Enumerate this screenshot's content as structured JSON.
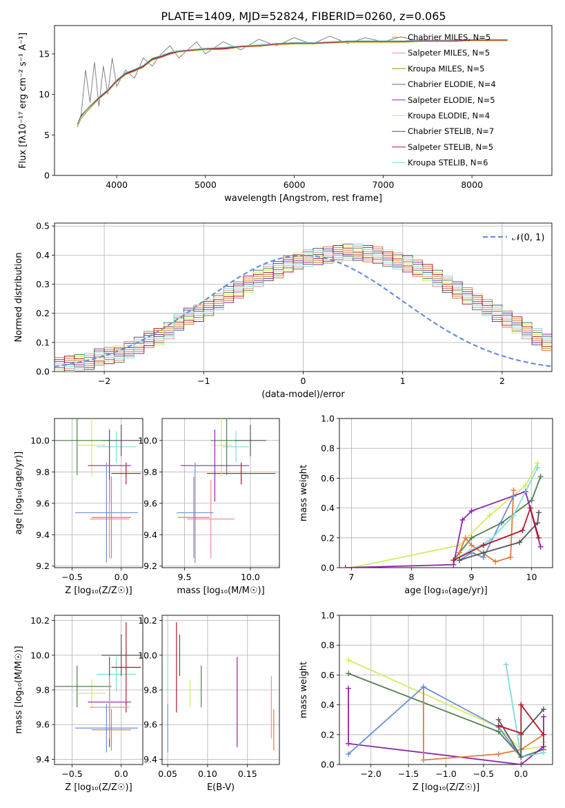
{
  "figure_title": "PLATE=1409, MJD=52824, FIBERID=0260, z=0.065",
  "colors": {
    "chabrier_miles": "#e07b3c",
    "salpeter_miles": "#f08a9a",
    "kroupa_miles": "#b08a20",
    "chabrier_elodie": "#4f7f4f",
    "salpeter_elodie": "#8e24aa",
    "kroupa_elodie": "#d6ea60",
    "chabrier_stelib": "#555555",
    "salpeter_stelib": "#b2182b",
    "kroupa_stelib": "#7fdada",
    "normal": "#6a8fd8",
    "data": "#808080"
  },
  "chart_data": [
    {
      "type": "line",
      "title": "PLATE=1409, MJD=52824, FIBERID=0260, z=0.065",
      "xlabel": "wavelength [Angstrom, rest frame]",
      "ylabel": "Flux [fλ10⁻¹⁷ erg cm⁻² s⁻¹ A⁻¹]",
      "xlim": [
        3300,
        8900
      ],
      "ylim": [
        0,
        18.5
      ],
      "xticks": [
        4000,
        5000,
        6000,
        7000,
        8000
      ],
      "yticks": [
        0,
        5,
        10,
        15
      ],
      "x": [
        3560,
        3600,
        3700,
        3800,
        3900,
        4000,
        4100,
        4200,
        4300,
        4400,
        4500,
        4600,
        4700,
        4800,
        5000,
        5200,
        5400,
        5600,
        5800,
        6000,
        6200,
        6400,
        6600,
        6800,
        7000,
        7200,
        7400,
        7600,
        7800,
        8000,
        8200,
        8400
      ],
      "series": [
        {
          "name": "Chabrier MILES, N_SSP=5",
          "key": "chabrier_miles",
          "values": [
            6.2,
            7.2,
            8.5,
            9.5,
            10.4,
            11.6,
            12.5,
            12.9,
            13.4,
            14.3,
            14.6,
            15.0,
            15.3,
            15.4,
            15.6,
            15.6,
            15.9,
            16.0,
            16.2,
            16.3,
            16.3,
            16.4,
            16.5,
            16.5,
            16.5,
            16.5,
            16.6,
            16.6,
            16.6,
            16.7,
            16.7,
            16.7
          ]
        },
        {
          "name": "Salpeter MILES, N_SSP=5",
          "key": "salpeter_miles",
          "values": [
            6.1,
            7.1,
            8.4,
            9.5,
            10.5,
            11.6,
            12.4,
            12.9,
            13.5,
            14.2,
            14.6,
            15.0,
            15.3,
            15.4,
            15.6,
            15.7,
            15.9,
            16.0,
            16.2,
            16.3,
            16.3,
            16.4,
            16.5,
            16.5,
            16.5,
            16.5,
            16.6,
            16.6,
            16.6,
            16.7,
            16.7,
            16.7
          ]
        },
        {
          "name": "Kroupa MILES, N_SSP=5",
          "key": "kroupa_miles",
          "values": [
            6.0,
            7.0,
            8.3,
            9.4,
            10.3,
            11.5,
            12.4,
            12.8,
            13.4,
            14.2,
            14.5,
            14.9,
            15.2,
            15.3,
            15.5,
            15.6,
            15.8,
            15.9,
            16.1,
            16.2,
            16.2,
            16.3,
            16.4,
            16.4,
            16.4,
            16.4,
            16.5,
            16.5,
            16.5,
            16.6,
            16.6,
            16.6
          ]
        },
        {
          "name": "Chabrier ELODIE, N_SSP=4",
          "key": "chabrier_elodie",
          "values": [
            6.3,
            7.3,
            8.6,
            9.6,
            10.5,
            11.7,
            12.6,
            13.0,
            13.5,
            14.4,
            14.7,
            15.1,
            15.4,
            15.5,
            15.7,
            15.7,
            16.0,
            16.1,
            16.3,
            16.4,
            16.4,
            16.5,
            16.6,
            16.6,
            16.6,
            16.6,
            16.7,
            16.7,
            16.7,
            16.8,
            16.8,
            16.8
          ]
        },
        {
          "name": "Salpeter ELODIE, N_SSP=5",
          "key": "salpeter_elodie",
          "values": [
            6.2,
            7.2,
            8.5,
            9.5,
            10.4,
            11.6,
            12.5,
            12.9,
            13.4,
            14.3,
            14.6,
            15.0,
            15.3,
            15.4,
            15.6,
            15.6,
            15.9,
            16.0,
            16.2,
            16.3,
            16.3,
            16.4,
            16.5,
            16.5,
            16.5,
            16.5,
            16.6,
            16.6,
            16.6,
            16.7,
            16.7,
            16.7
          ]
        },
        {
          "name": "Kroupa ELODIE, N_SSP=4",
          "key": "kroupa_elodie",
          "values": [
            6.1,
            7.1,
            8.4,
            9.4,
            10.3,
            11.5,
            12.4,
            12.8,
            13.3,
            14.2,
            14.5,
            14.9,
            15.2,
            15.3,
            15.5,
            15.5,
            15.8,
            15.9,
            16.1,
            16.2,
            16.2,
            16.3,
            16.4,
            16.4,
            16.4,
            16.4,
            16.5,
            16.5,
            16.5,
            16.6,
            16.6,
            16.6
          ]
        },
        {
          "name": "Chabrier STELIB, N_SSP=7",
          "key": "chabrier_stelib",
          "values": [
            6.4,
            7.4,
            8.6,
            9.6,
            10.6,
            11.8,
            12.6,
            13.1,
            13.6,
            14.4,
            14.8,
            15.2,
            15.4,
            15.5,
            15.7,
            15.8,
            16.0,
            16.1,
            16.3,
            16.4,
            16.4,
            16.5,
            16.6,
            16.6,
            16.6,
            16.6,
            16.7,
            16.7,
            16.7,
            16.8,
            16.8,
            16.8
          ]
        },
        {
          "name": "Salpeter STELIB, N_SSP=5",
          "key": "salpeter_stelib",
          "values": [
            6.3,
            7.3,
            8.5,
            9.5,
            10.5,
            11.7,
            12.5,
            13.0,
            13.5,
            14.3,
            14.7,
            15.1,
            15.3,
            15.4,
            15.6,
            15.7,
            15.9,
            16.0,
            16.2,
            16.3,
            16.3,
            16.4,
            16.5,
            16.5,
            16.5,
            16.5,
            16.6,
            16.6,
            16.6,
            16.7,
            16.7,
            16.7
          ]
        },
        {
          "name": "Kroupa STELIB, N_SSP=6",
          "key": "kroupa_stelib",
          "values": [
            6.2,
            7.2,
            8.6,
            9.7,
            10.6,
            11.8,
            12.7,
            13.1,
            13.6,
            14.5,
            14.8,
            15.2,
            15.4,
            15.5,
            15.7,
            15.8,
            16.0,
            16.1,
            16.3,
            16.4,
            16.4,
            16.5,
            16.6,
            16.6,
            16.6,
            16.6,
            16.7,
            16.7,
            16.7,
            16.8,
            16.8,
            16.8
          ]
        }
      ],
      "observed": {
        "x": [
          3560,
          3600,
          3650,
          3700,
          3750,
          3800,
          3850,
          3900,
          3950,
          4000,
          4100,
          4200,
          4300,
          4400,
          4500,
          4600,
          4700,
          4800,
          4900,
          5000,
          5200,
          5400,
          5600,
          5800,
          6000,
          6200,
          6400,
          6600,
          6800,
          7000,
          7200,
          7400
        ],
        "values": [
          6.0,
          7.5,
          13.0,
          9.0,
          14.0,
          8.5,
          13.5,
          10.0,
          14.5,
          11.0,
          13.0,
          12.0,
          14.5,
          13.5,
          15.0,
          16.0,
          14.5,
          15.5,
          16.5,
          15.0,
          16.5,
          15.5,
          16.8,
          16.0,
          17.0,
          16.2,
          17.2,
          16.3,
          17.0,
          16.5,
          17.1,
          16.6
        ]
      },
      "legend": "right"
    },
    {
      "type": "step",
      "xlabel": "(data-model)/error",
      "ylabel": "Normed distribution",
      "xlim": [
        -2.5,
        2.5
      ],
      "ylim": [
        0,
        0.51
      ],
      "xticks": [
        -2,
        -1,
        0,
        1,
        2
      ],
      "xticklabels": [
        "−2",
        "−1",
        "0",
        "1",
        "2"
      ],
      "yticks": [
        0.0,
        0.1,
        0.2,
        0.3,
        0.4,
        0.5
      ],
      "yticklabels": [
        "0.0",
        "0.1",
        "0.2",
        "0.3",
        "0.4",
        "0.5"
      ],
      "normal_label": "𝒩(0, 1)",
      "bin_width": 0.1,
      "bin_start": -2.5,
      "hist_values": [
        0.02,
        0.025,
        0.03,
        0.035,
        0.05,
        0.055,
        0.06,
        0.075,
        0.09,
        0.11,
        0.12,
        0.14,
        0.17,
        0.19,
        0.2,
        0.22,
        0.24,
        0.265,
        0.28,
        0.3,
        0.32,
        0.34,
        0.35,
        0.37,
        0.38,
        0.39,
        0.395,
        0.4,
        0.405,
        0.41,
        0.41,
        0.405,
        0.4,
        0.39,
        0.38,
        0.37,
        0.355,
        0.34,
        0.32,
        0.3,
        0.28,
        0.26,
        0.24,
        0.22,
        0.2,
        0.18,
        0.16,
        0.14,
        0.12,
        0.1
      ]
    },
    {
      "type": "scatter",
      "name": "age vs Z",
      "xlabel": "Z [log₁₀(Z/Z☉)]",
      "ylabel": "age  [log₁₀(age/yr)]",
      "xlim": [
        -0.68,
        0.22
      ],
      "ylim": [
        9.19,
        10.14
      ],
      "xticks": [
        -0.5,
        0.0
      ],
      "xticklabels": [
        "−0.5",
        "0.0"
      ],
      "yticks": [
        9.2,
        9.4,
        9.6,
        9.8,
        10.0
      ],
      "yticklabels": [
        "9.2",
        "9.4",
        "9.6",
        "9.8",
        "10.0"
      ]
    },
    {
      "type": "scatter",
      "name": "age vs mass",
      "xlabel": "mass [log₁₀(M/M☉)]",
      "xlim": [
        9.33,
        10.22
      ],
      "ylim": [
        9.19,
        10.14
      ],
      "xticks": [
        9.5,
        10.0
      ],
      "xticklabels": [
        "9.5",
        "10.0"
      ],
      "yticks": [
        9.2,
        9.4,
        9.6,
        9.8,
        10.0
      ],
      "yticklabels": [
        "9.2",
        "9.4",
        "9.6",
        "9.8",
        "10.0"
      ]
    },
    {
      "type": "line",
      "name": "mass weight vs age",
      "xlabel": "age  [log₁₀(age/yr)]",
      "ylabel": "mass weight",
      "xlim": [
        6.8,
        10.35
      ],
      "ylim": [
        0,
        1.0
      ],
      "xticks": [
        7,
        8,
        9,
        10
      ],
      "xticklabels": [
        "7",
        "8",
        "9",
        "10"
      ],
      "yticks": [
        0.0,
        0.2,
        0.4,
        0.6,
        0.8,
        1.0
      ],
      "yticklabels": [
        "0.0",
        "0.2",
        "0.4",
        "0.6",
        "0.8",
        "1.0"
      ]
    },
    {
      "type": "scatter",
      "name": "mass vs Z",
      "xlabel": "Z [log₁₀(Z/Z☉)]",
      "ylabel": "mass [log₁₀(M/M☉)]",
      "xlim": [
        -0.68,
        0.22
      ],
      "ylim": [
        9.37,
        10.23
      ],
      "xticks": [
        -0.5,
        0.0
      ],
      "xticklabels": [
        "−0.5",
        "0.0"
      ],
      "yticks": [
        9.4,
        9.6,
        9.8,
        10.0,
        10.2
      ],
      "yticklabels": [
        "9.4",
        "9.6",
        "9.8",
        "10.0",
        "10.2"
      ]
    },
    {
      "type": "scatter",
      "name": "mass vs E(B-V)",
      "xlabel": "E(B-V)",
      "xlim": [
        0.043,
        0.19
      ],
      "ylim": [
        9.37,
        10.23
      ],
      "xticks": [
        0.05,
        0.1,
        0.15
      ],
      "xticklabels": [
        "0.05",
        "0.10",
        "0.15"
      ],
      "yticks": [
        9.4,
        9.6,
        9.8,
        10.0,
        10.2
      ],
      "yticklabels": [
        "9.4",
        "9.6",
        "9.8",
        "10.0",
        "10.2"
      ]
    },
    {
      "type": "line",
      "name": "mass weight vs Z",
      "xlabel": "Z [log₁₀(Z/Z☉)]",
      "ylabel": "mass weight",
      "xlim": [
        -2.42,
        0.42
      ],
      "ylim": [
        0,
        1.0
      ],
      "xticks": [
        -2.0,
        -1.5,
        -1.0,
        -0.5,
        0.0
      ],
      "xticklabels": [
        "−2.0",
        "−1.5",
        "−1.0",
        "−0.5",
        "0.0"
      ],
      "yticks": [
        0.0,
        0.2,
        0.4,
        0.6,
        0.8,
        1.0
      ],
      "yticklabels": [
        "0.0",
        "0.2",
        "0.4",
        "0.6",
        "0.8",
        "1.0"
      ]
    }
  ],
  "model_points": [
    {
      "key": "kroupa_stelib",
      "z": -0.05,
      "z_err": 0.2,
      "age": 9.96,
      "age_err": 0.1,
      "mass": 9.89,
      "mass_err": 0.1,
      "ebv": 0.05
    },
    {
      "key": "chabrier_stelib",
      "z": 0.0,
      "z_err": 0.2,
      "age": 10.0,
      "age_err": 0.1,
      "mass": 10.0,
      "mass_err": 0.12,
      "ebv": 0.065
    },
    {
      "key": "salpeter_stelib",
      "z": 0.05,
      "z_err": 0.15,
      "age": 9.79,
      "age_err": 0.07,
      "mass": 9.93,
      "mass_err": 0.26,
      "ebv": 0.061
    },
    {
      "key": "kroupa_elodie",
      "z": -0.3,
      "z_err": 0.14,
      "age": 9.97,
      "age_err": 0.2,
      "mass": 9.78,
      "mass_err": 0.08,
      "ebv": 0.078
    },
    {
      "key": "chabrier_elodie",
      "z": -0.45,
      "z_err": 0.35,
      "age": 10.0,
      "age_err": 0.22,
      "mass": 9.82,
      "mass_err": 0.12,
      "ebv": 0.092
    },
    {
      "key": "salpeter_elodie",
      "z": -0.12,
      "z_err": 0.22,
      "age": 9.84,
      "age_err": 0.23,
      "mass": 9.73,
      "mass_err": 0.26,
      "ebv": 0.137
    },
    {
      "key": "chabrier_miles",
      "z": -0.1,
      "z_err": 0.2,
      "age": 9.51,
      "age_err": 0.26,
      "mass": 9.57,
      "mass_err": 0.12,
      "ebv": 0.183
    },
    {
      "key": "salpeter_miles",
      "z": -0.12,
      "z_err": 0.2,
      "age": 9.5,
      "age_err": 0.25,
      "mass": 9.7,
      "mass_err": 0.18,
      "ebv": 0.18
    },
    {
      "key": "normal",
      "z": -0.15,
      "z_err": 0.32,
      "age": 9.54,
      "age_err": 0.32,
      "mass": 9.58,
      "mass_err": 0.14,
      "ebv": 0.05
    }
  ],
  "weight_lines": [
    {
      "key": "kroupa_elodie",
      "age": [
        7.0,
        8.8,
        9.3,
        9.9,
        10.1
      ],
      "w": [
        0.0,
        0.15,
        0.35,
        0.55,
        0.7
      ],
      "z": [
        -2.3,
        -0.3,
        0.0,
        0.3,
        0.3
      ],
      "wz": [
        0.7,
        0.25,
        0.1,
        0.12,
        0.15
      ]
    },
    {
      "key": "chabrier_elodie",
      "age": [
        8.7,
        9.0,
        9.5,
        10.0,
        10.15
      ],
      "w": [
        0.05,
        0.2,
        0.3,
        0.45,
        0.61
      ],
      "z": [
        -2.3,
        -0.3,
        0.0,
        0.3
      ],
      "wz": [
        0.61,
        0.22,
        0.05,
        0.1
      ]
    },
    {
      "key": "salpeter_elodie",
      "age": [
        6.9,
        8.7,
        8.85,
        9.0,
        9.9,
        10.15
      ],
      "w": [
        0.0,
        0.02,
        0.32,
        0.38,
        0.51,
        0.14
      ],
      "z": [
        -2.3,
        -2.3,
        0.0,
        0.3,
        0.3
      ],
      "wz": [
        0.51,
        0.14,
        0.0,
        0.12,
        0.32
      ]
    },
    {
      "key": "chabrier_miles",
      "age": [
        8.8,
        8.9,
        9.0,
        9.4,
        9.65,
        9.7
      ],
      "w": [
        0.1,
        0.2,
        0.15,
        0.04,
        0.07,
        0.52
      ],
      "z": [
        -1.3,
        -1.3,
        -0.3,
        0.0,
        0.3
      ],
      "wz": [
        0.52,
        0.03,
        0.07,
        0.1,
        0.2
      ]
    },
    {
      "key": "normal",
      "age": [
        8.8,
        9.0,
        9.2,
        9.7
      ],
      "w": [
        0.05,
        0.1,
        0.07,
        0.48
      ],
      "z": [
        -2.3,
        -1.3,
        -0.3,
        0.0
      ],
      "wz": [
        0.07,
        0.52,
        0.25,
        0.05
      ]
    },
    {
      "key": "kroupa_stelib",
      "age": [
        8.7,
        9.0,
        9.3,
        9.7,
        10.1
      ],
      "w": [
        0.05,
        0.12,
        0.18,
        0.35,
        0.67
      ],
      "z": [
        -0.2,
        0.0,
        0.3
      ],
      "wz": [
        0.67,
        0.05,
        0.08
      ]
    },
    {
      "key": "chabrier_stelib",
      "age": [
        8.8,
        9.2,
        9.8,
        10.1,
        10.12
      ],
      "w": [
        0.05,
        0.1,
        0.17,
        0.3,
        0.37
      ],
      "z": [
        -0.3,
        0.0,
        0.0,
        0.3
      ],
      "wz": [
        0.3,
        0.05,
        0.2,
        0.37
      ]
    },
    {
      "key": "salpeter_stelib",
      "age": [
        8.7,
        9.2,
        9.85,
        9.98,
        10.12
      ],
      "w": [
        0.05,
        0.15,
        0.25,
        0.4,
        0.2
      ],
      "z": [
        -0.3,
        0.0,
        0.0,
        0.3
      ],
      "wz": [
        0.26,
        0.21,
        0.4,
        0.2
      ]
    }
  ]
}
